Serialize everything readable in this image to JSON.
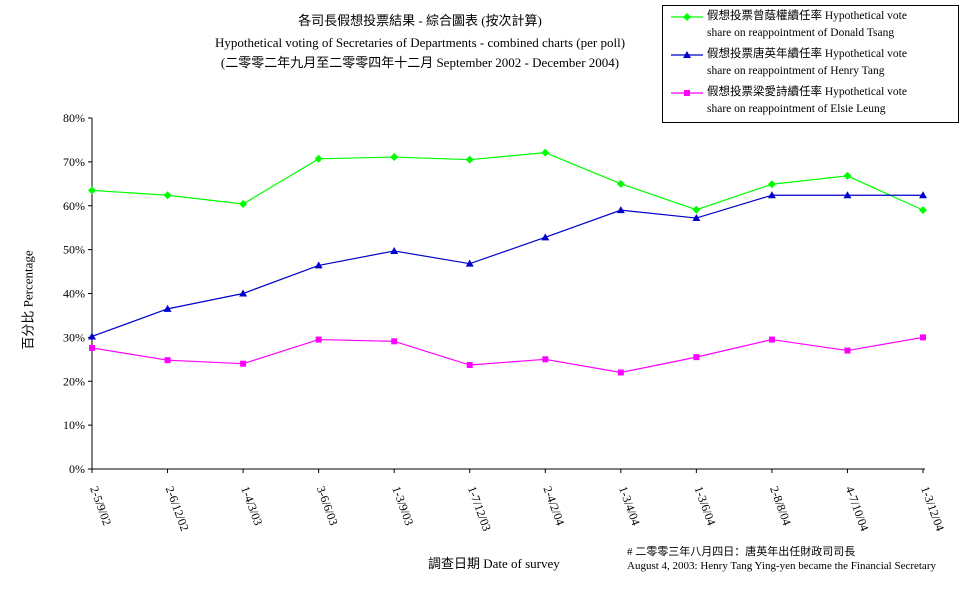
{
  "chart_data": {
    "type": "line",
    "title": "各司長假想投票結果 - 綜合圖表 (按次計算)",
    "subtitle": "Hypothetical voting of Secretaries of Departments - combined charts (per poll)",
    "subtitle2": "(二零零二年九月至二零零四年十二月 September 2002 -  December 2004)",
    "xlabel": "調查日期 Date of survey",
    "ylabel": "百分比 Percentage",
    "ylim": [
      0,
      80
    ],
    "yticks": [
      "0%",
      "10%",
      "20%",
      "30%",
      "40%",
      "50%",
      "60%",
      "70%",
      "80%"
    ],
    "categories": [
      "2-5/9/02",
      "2-6/12/02",
      "1-4/3/03",
      "3-6/6/03",
      "1-3/9/03",
      "1-7/12/03",
      "2-4/2/04",
      "1-3/4/04",
      "1-3/6/04",
      "2-8/8/04",
      "4-7/10/04",
      "1-3/12/04"
    ],
    "grid": false,
    "legend_position": "top-right",
    "series": [
      {
        "name": "假想投票曾蔭權續任率 Hypothetical vote share on reappointment of Donald Tsang",
        "color": "#00ff00",
        "marker": "diamond",
        "values": [
          63.5,
          62.4,
          60.4,
          70.7,
          71.1,
          70.5,
          72.1,
          65.0,
          59.1,
          64.9,
          66.8,
          59.0
        ]
      },
      {
        "name": "假想投票唐英年續任率 Hypothetical vote share on reappointment of Henry Tang",
        "color": "#0000cc",
        "marker": "triangle",
        "values": [
          30.2,
          36.5,
          40.0,
          46.4,
          49.7,
          46.8,
          52.8,
          59.0,
          57.2,
          62.4,
          62.4,
          62.4
        ]
      },
      {
        "name": "假想投票梁愛詩續任率 Hypothetical vote share on reappointment of Elsie Leung",
        "color": "#ff00ff",
        "marker": "square",
        "values": [
          27.6,
          24.8,
          24.0,
          29.5,
          29.1,
          23.7,
          25.0,
          22.0,
          25.5,
          29.5,
          27.0,
          30.0
        ]
      }
    ],
    "footnote": "# 二零零三年八月四日：唐英年出任財政司司長\nAugust 4, 2003: Henry Tang Ying-yen became the Financial Secretary"
  },
  "legend": [
    {
      "text": "假想投票曾蔭權續任率 Hypothetical vote\nshare on reappointment of Donald Tsang"
    },
    {
      "text": "假想投票唐英年續任率 Hypothetical vote\nshare on reappointment of Henry Tang"
    },
    {
      "text": "假想投票梁愛詩續任率 Hypothetical vote\nshare on reappointment of Elsie Leung"
    }
  ]
}
